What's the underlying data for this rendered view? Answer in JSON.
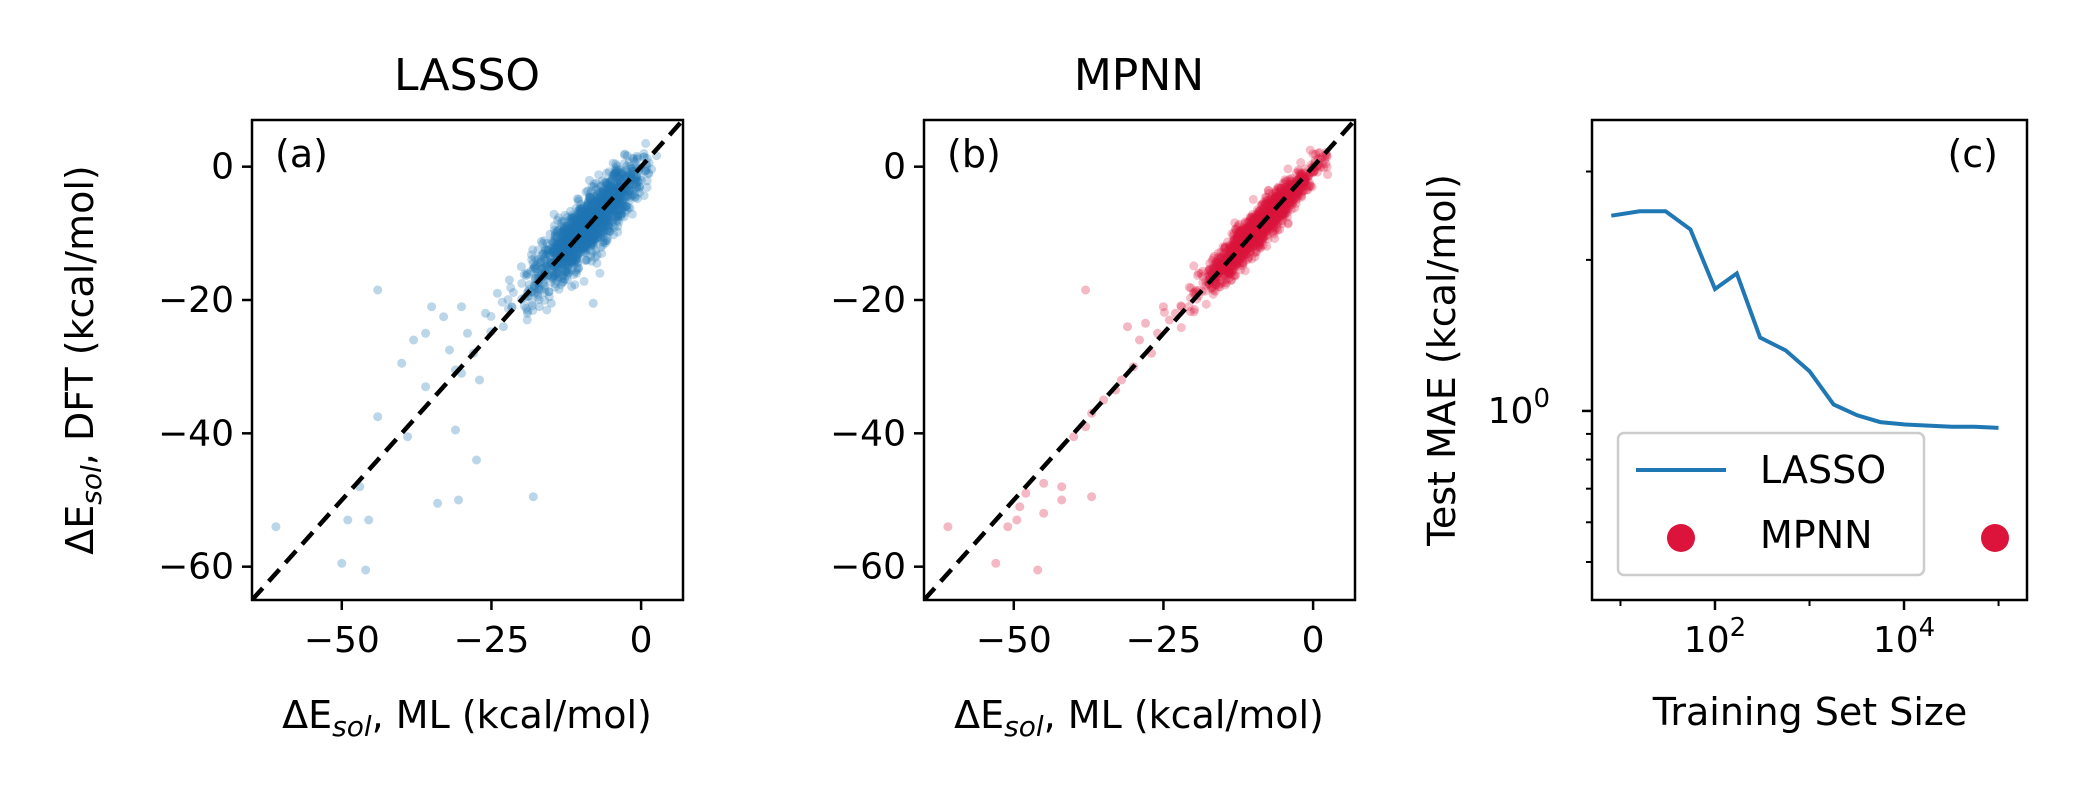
{
  "colors": {
    "lasso": "#1f77b4",
    "mpnn": "#dc143c",
    "diagonal": "#000000"
  },
  "chart_data": [
    {
      "type": "scatter",
      "title": "LASSO",
      "panel_label": "(a)",
      "xlabel": {
        "prefix": "ΔE",
        "sub": "sol",
        "suffix": ", ML (kcal/mol)"
      },
      "ylabel": {
        "prefix": "ΔE",
        "sub": "sol",
        "suffix": ", DFT (kcal/mol)"
      },
      "xlim": [
        -65,
        7
      ],
      "ylim": [
        -65,
        7
      ],
      "xticks": [
        -50,
        -25,
        0
      ],
      "xtick_labels": [
        "−50",
        "−25",
        "0"
      ],
      "yticks": [
        0,
        -20,
        -40,
        -60
      ],
      "ytick_labels": [
        "0",
        "−20",
        "−40",
        "−60"
      ],
      "diagonal": true,
      "series": [
        {
          "color_key": "lasso",
          "cluster": {
            "center": [
              -9,
              -9
            ],
            "spread_along": 6,
            "spread_across": 1.6,
            "count": 1600
          },
          "outliers": [
            [
              -44,
              -18.5
            ],
            [
              -35,
              -21
            ],
            [
              -30,
              -21
            ],
            [
              -33,
              -22.5
            ],
            [
              -36,
              -25
            ],
            [
              -29,
              -25
            ],
            [
              -38,
              -26
            ],
            [
              -32,
              -27.5
            ],
            [
              -28,
              -28
            ],
            [
              -40,
              -29.5
            ],
            [
              -30,
              -31
            ],
            [
              -31,
              -30.5
            ],
            [
              -27,
              -32
            ],
            [
              -36,
              -33
            ],
            [
              -44,
              -37.5
            ],
            [
              -39,
              -40.5
            ],
            [
              -31,
              -39.5
            ],
            [
              -27.5,
              -44
            ],
            [
              -47,
              -48
            ],
            [
              -18,
              -49.5
            ],
            [
              -34,
              -50.5
            ],
            [
              -30.5,
              -50
            ],
            [
              -49,
              -53
            ],
            [
              -45.5,
              -53
            ],
            [
              -61,
              -54
            ],
            [
              -50,
              -59.5
            ],
            [
              -46,
              -60.5
            ],
            [
              -20,
              -15
            ],
            [
              -22,
              -17
            ],
            [
              -24,
              -19
            ],
            [
              -17,
              -21
            ],
            [
              -19,
              -22
            ],
            [
              -15,
              -20.5
            ],
            [
              -26,
              -22
            ],
            [
              -23,
              -24
            ],
            [
              -8,
              -20.5
            ]
          ]
        }
      ]
    },
    {
      "type": "scatter",
      "title": "MPNN",
      "panel_label": "(b)",
      "xlabel": {
        "prefix": "ΔE",
        "sub": "sol",
        "suffix": ", ML (kcal/mol)"
      },
      "ylabel": null,
      "xlim": [
        -65,
        7
      ],
      "ylim": [
        -65,
        7
      ],
      "xticks": [
        -50,
        -25,
        0
      ],
      "xtick_labels": [
        "−50",
        "−25",
        "0"
      ],
      "yticks": [
        0,
        -20,
        -40,
        -60
      ],
      "ytick_labels": [
        "0",
        "−20",
        "−40",
        "−60"
      ],
      "diagonal": true,
      "series": [
        {
          "color_key": "mpnn",
          "cluster": {
            "center": [
              -9,
              -9
            ],
            "spread_along": 6,
            "spread_across": 1.0,
            "count": 1600
          },
          "outliers": [
            [
              -38,
              -18.5
            ],
            [
              -28,
              -23.5
            ],
            [
              -31,
              -24
            ],
            [
              -25,
              -21
            ],
            [
              -29,
              -26
            ],
            [
              -27,
              -28
            ],
            [
              -30,
              -30
            ],
            [
              -32,
              -32
            ],
            [
              -33,
              -33.5
            ],
            [
              -35,
              -35
            ],
            [
              -37,
              -37
            ],
            [
              -38,
              -39
            ],
            [
              -40,
              -40.5
            ],
            [
              -45,
              -47.5
            ],
            [
              -42,
              -48
            ],
            [
              -48,
              -49
            ],
            [
              -42,
              -50
            ],
            [
              -37,
              -49.5
            ],
            [
              -49,
              -51
            ],
            [
              -45,
              -52
            ],
            [
              -49.5,
              -53
            ],
            [
              -51,
              -54
            ],
            [
              -61,
              -54
            ],
            [
              -53,
              -59.5
            ],
            [
              -46,
              -60.5
            ],
            [
              -22,
              -21
            ],
            [
              -24,
              -23
            ],
            [
              -20,
              -19
            ],
            [
              -26,
              -25
            ],
            [
              -23,
              -22
            ]
          ]
        }
      ]
    },
    {
      "type": "line",
      "title": "",
      "panel_label": "(c)",
      "xlabel": "Training Set Size",
      "ylabel": "Test MAE (kcal/mol)",
      "xscale": "log",
      "yscale": "log",
      "xlim": [
        5,
        200000
      ],
      "ylim": [
        0.42,
        3.8
      ],
      "xticks": [
        100,
        10000
      ],
      "xtick_labels": [
        {
          "base": "10",
          "exp": "2"
        },
        {
          "base": "10",
          "exp": "4"
        }
      ],
      "yticks": [
        1
      ],
      "ytick_labels": [
        {
          "base": "10",
          "exp": "0"
        }
      ],
      "series": [
        {
          "name": "LASSO",
          "color_key": "lasso",
          "x": [
            8,
            16,
            30,
            55,
            100,
            170,
            300,
            560,
            1000,
            1800,
            3200,
            5600,
            10000,
            18000,
            32000,
            56000,
            100000
          ],
          "y": [
            2.45,
            2.5,
            2.5,
            2.3,
            1.75,
            1.88,
            1.4,
            1.32,
            1.2,
            1.03,
            0.98,
            0.95,
            0.94,
            0.935,
            0.93,
            0.93,
            0.925
          ]
        }
      ],
      "legend": {
        "position": "lower-left",
        "entries": [
          {
            "label": "LASSO",
            "marker": "line",
            "color_key": "lasso"
          },
          {
            "label": "MPNN",
            "marker": "dot",
            "color_key": "mpnn"
          }
        ]
      }
    }
  ]
}
